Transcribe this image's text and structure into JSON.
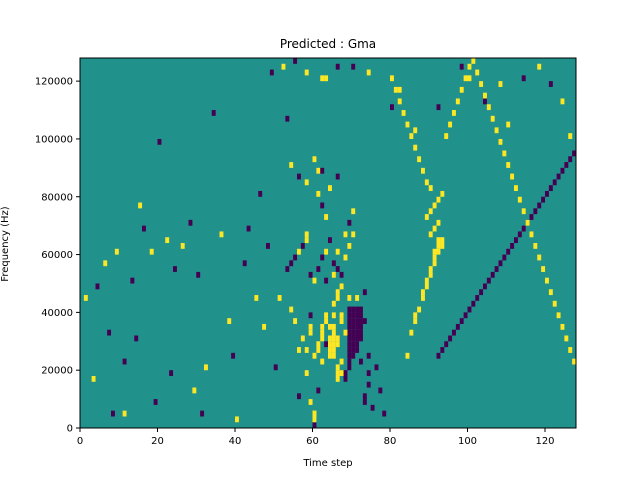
{
  "chart_data": {
    "type": "heatmap",
    "title": "Predicted : Gma",
    "xlabel": "Time step",
    "ylabel": "Frequency (Hz)",
    "xlim": [
      0,
      128
    ],
    "ylim": [
      0,
      128000
    ],
    "x_ticks": [
      0,
      20,
      40,
      60,
      80,
      100,
      120
    ],
    "y_ticks": [
      0,
      20000,
      40000,
      60000,
      80000,
      100000,
      120000
    ],
    "x_tick_labels": [
      "0",
      "20",
      "40",
      "60",
      "80",
      "100",
      "120"
    ],
    "y_tick_labels": [
      "0",
      "20000",
      "40000",
      "60000",
      "80000",
      "100000",
      "120000"
    ],
    "rows": 64,
    "cols": 128,
    "row_height_hz": 2000,
    "background_value": 0,
    "values_legend": {
      "-1": "#440154",
      "0": "#21918c",
      "1": "#fde725"
    },
    "colors": {
      "-1": "#440154",
      "0": "#21918c",
      "1": "#fde725"
    },
    "cells": [
      [
        1,
        22,
        1
      ],
      [
        3,
        8,
        1
      ],
      [
        4,
        24,
        -1
      ],
      [
        6,
        28,
        1
      ],
      [
        7,
        16,
        -1
      ],
      [
        8,
        2,
        -1
      ],
      [
        9,
        30,
        1
      ],
      [
        11,
        2,
        1
      ],
      [
        11,
        11,
        -1
      ],
      [
        13,
        25,
        -1
      ],
      [
        14,
        15,
        -1
      ],
      [
        15,
        38,
        1
      ],
      [
        16,
        34,
        -1
      ],
      [
        18,
        30,
        1
      ],
      [
        19,
        4,
        -1
      ],
      [
        20,
        49,
        -1
      ],
      [
        22,
        32,
        1
      ],
      [
        23,
        9,
        -1
      ],
      [
        24,
        27,
        -1
      ],
      [
        26,
        31,
        1
      ],
      [
        28,
        35,
        -1
      ],
      [
        29,
        6,
        1
      ],
      [
        30,
        26,
        -1
      ],
      [
        31,
        2,
        -1
      ],
      [
        32,
        10,
        1
      ],
      [
        34,
        54,
        -1
      ],
      [
        36,
        33,
        1
      ],
      [
        38,
        18,
        1
      ],
      [
        39,
        12,
        -1
      ],
      [
        40,
        1,
        1
      ],
      [
        42,
        28,
        -1
      ],
      [
        43,
        34,
        -1
      ],
      [
        45,
        22,
        1
      ],
      [
        46,
        40,
        -1
      ],
      [
        47,
        17,
        1
      ],
      [
        48,
        31,
        -1
      ],
      [
        50,
        10,
        -1
      ],
      [
        51,
        22,
        1
      ],
      [
        53,
        53,
        -1
      ],
      [
        54,
        45,
        1
      ],
      [
        56,
        5,
        -1
      ],
      [
        58,
        33,
        1
      ],
      [
        59,
        19,
        -1
      ],
      [
        60,
        2,
        1
      ],
      [
        61,
        44,
        1
      ],
      [
        62,
        60,
        1
      ],
      [
        63,
        25,
        -1
      ],
      [
        49,
        61,
        -1
      ],
      [
        52,
        62,
        1
      ],
      [
        55,
        63,
        -1
      ],
      [
        58,
        61,
        1
      ],
      [
        63,
        60,
        1
      ],
      [
        66,
        62,
        -1
      ],
      [
        70,
        62,
        -1
      ],
      [
        74,
        61,
        1
      ],
      [
        80,
        55,
        -1
      ],
      [
        82,
        58,
        1
      ],
      [
        86,
        51,
        1
      ],
      [
        92,
        55,
        -1
      ],
      [
        98,
        62,
        -1
      ],
      [
        100,
        60,
        1
      ],
      [
        104,
        56,
        -1
      ],
      [
        108,
        59,
        1
      ],
      [
        110,
        52,
        1
      ],
      [
        114,
        60,
        -1
      ],
      [
        118,
        62,
        1
      ],
      [
        121,
        59,
        -1
      ],
      [
        124,
        56,
        1
      ],
      [
        126,
        50,
        1
      ],
      [
        60,
        0,
        -1
      ],
      [
        60,
        1,
        1
      ],
      [
        60,
        2,
        1
      ],
      [
        59,
        4,
        1
      ],
      [
        61,
        6,
        -1
      ],
      [
        58,
        9,
        1
      ],
      [
        62,
        11,
        1
      ],
      [
        63,
        14,
        -1
      ],
      [
        64,
        17,
        1
      ],
      [
        65,
        19,
        1
      ],
      [
        65,
        21,
        1
      ],
      [
        66,
        22,
        1
      ],
      [
        66,
        23,
        1
      ],
      [
        67,
        24,
        1
      ],
      [
        65,
        26,
        1
      ],
      [
        66,
        27,
        -1
      ],
      [
        68,
        29,
        1
      ],
      [
        69,
        31,
        1
      ],
      [
        70,
        33,
        1
      ],
      [
        63,
        36,
        1
      ],
      [
        62,
        38,
        -1
      ],
      [
        61,
        40,
        1
      ],
      [
        68,
        8,
        -1
      ],
      [
        68,
        9,
        -1
      ],
      [
        69,
        10,
        -1
      ],
      [
        69,
        11,
        -1
      ],
      [
        69,
        12,
        -1
      ],
      [
        69,
        13,
        -1
      ],
      [
        69,
        14,
        -1
      ],
      [
        69,
        15,
        -1
      ],
      [
        69,
        16,
        -1
      ],
      [
        69,
        17,
        -1
      ],
      [
        69,
        18,
        -1
      ],
      [
        69,
        19,
        -1
      ],
      [
        69,
        20,
        -1
      ],
      [
        70,
        12,
        -1
      ],
      [
        70,
        13,
        -1
      ],
      [
        70,
        14,
        -1
      ],
      [
        70,
        15,
        -1
      ],
      [
        70,
        16,
        -1
      ],
      [
        70,
        17,
        -1
      ],
      [
        70,
        18,
        -1
      ],
      [
        70,
        19,
        -1
      ],
      [
        70,
        20,
        -1
      ],
      [
        71,
        13,
        -1
      ],
      [
        71,
        14,
        -1
      ],
      [
        71,
        15,
        -1
      ],
      [
        71,
        16,
        -1
      ],
      [
        71,
        17,
        -1
      ],
      [
        71,
        18,
        -1
      ],
      [
        71,
        19,
        -1
      ],
      [
        71,
        20,
        -1
      ],
      [
        72,
        15,
        -1
      ],
      [
        72,
        16,
        -1
      ],
      [
        72,
        17,
        -1
      ],
      [
        72,
        18,
        -1
      ],
      [
        72,
        19,
        -1
      ],
      [
        72,
        20,
        -1
      ],
      [
        73,
        4,
        -1
      ],
      [
        73,
        5,
        -1
      ],
      [
        73,
        18,
        -1
      ],
      [
        74,
        7,
        -1
      ],
      [
        74,
        9,
        -1
      ],
      [
        75,
        3,
        -1
      ],
      [
        76,
        10,
        -1
      ],
      [
        77,
        6,
        -1
      ],
      [
        78,
        2,
        -1
      ],
      [
        67,
        18,
        1
      ],
      [
        67,
        19,
        1
      ],
      [
        66,
        14,
        1
      ],
      [
        66,
        15,
        1
      ],
      [
        67,
        11,
        1
      ],
      [
        68,
        16,
        1
      ],
      [
        69,
        22,
        1
      ],
      [
        71,
        22,
        1
      ],
      [
        72,
        11,
        -1
      ],
      [
        73,
        23,
        -1
      ],
      [
        74,
        12,
        -1
      ],
      [
        60,
        12,
        1
      ],
      [
        61,
        13,
        1
      ],
      [
        61,
        14,
        1
      ],
      [
        62,
        15,
        1
      ],
      [
        62,
        16,
        1
      ],
      [
        62,
        17,
        1
      ],
      [
        63,
        18,
        1
      ],
      [
        63,
        19,
        1
      ],
      [
        64,
        12,
        1
      ],
      [
        64,
        13,
        1
      ],
      [
        64,
        14,
        1
      ],
      [
        64,
        15,
        1
      ],
      [
        65,
        12,
        1
      ],
      [
        65,
        13,
        1
      ],
      [
        65,
        14,
        1
      ],
      [
        65,
        15,
        1
      ],
      [
        65,
        16,
        1
      ],
      [
        65,
        17,
        1
      ],
      [
        66,
        8,
        1
      ],
      [
        66,
        9,
        1
      ],
      [
        66,
        10,
        1
      ],
      [
        67,
        9,
        1
      ],
      [
        59,
        16,
        1
      ],
      [
        59,
        17,
        1
      ],
      [
        58,
        13,
        1
      ],
      [
        57,
        15,
        1
      ],
      [
        56,
        13,
        1
      ],
      [
        55,
        18,
        1
      ],
      [
        54,
        20,
        1
      ],
      [
        53,
        27,
        -1
      ],
      [
        54,
        28,
        -1
      ],
      [
        55,
        29,
        -1
      ],
      [
        56,
        30,
        1
      ],
      [
        57,
        31,
        -1
      ],
      [
        58,
        32,
        1
      ],
      [
        59,
        26,
        -1
      ],
      [
        60,
        25,
        1
      ],
      [
        61,
        27,
        -1
      ],
      [
        62,
        29,
        -1
      ],
      [
        63,
        30,
        1
      ],
      [
        64,
        32,
        -1
      ],
      [
        65,
        28,
        -1
      ],
      [
        66,
        30,
        1
      ],
      [
        67,
        26,
        -1
      ],
      [
        68,
        33,
        1
      ],
      [
        69,
        35,
        -1
      ],
      [
        70,
        37,
        1
      ],
      [
        56,
        43,
        -1
      ],
      [
        58,
        42,
        1
      ],
      [
        60,
        46,
        1
      ],
      [
        62,
        44,
        -1
      ],
      [
        64,
        41,
        1
      ],
      [
        66,
        43,
        -1
      ],
      [
        84,
        12,
        1
      ],
      [
        85,
        16,
        1
      ],
      [
        86,
        18,
        1
      ],
      [
        86,
        19,
        1
      ],
      [
        87,
        20,
        1
      ],
      [
        88,
        22,
        1
      ],
      [
        88,
        23,
        1
      ],
      [
        89,
        24,
        1
      ],
      [
        89,
        25,
        1
      ],
      [
        90,
        26,
        1
      ],
      [
        90,
        27,
        1
      ],
      [
        91,
        28,
        1
      ],
      [
        91,
        29,
        1
      ],
      [
        91,
        30,
        1
      ],
      [
        92,
        30,
        1
      ],
      [
        92,
        31,
        1
      ],
      [
        92,
        32,
        1
      ],
      [
        93,
        31,
        1
      ],
      [
        93,
        32,
        1
      ],
      [
        90,
        33,
        1
      ],
      [
        91,
        34,
        1
      ],
      [
        92,
        35,
        1
      ],
      [
        89,
        36,
        1
      ],
      [
        90,
        37,
        1
      ],
      [
        91,
        38,
        1
      ],
      [
        92,
        39,
        1
      ],
      [
        93,
        40,
        1
      ],
      [
        90,
        41,
        1
      ],
      [
        89,
        42,
        1
      ],
      [
        88,
        44,
        1
      ],
      [
        87,
        46,
        1
      ],
      [
        86,
        48,
        1
      ],
      [
        85,
        50,
        1
      ],
      [
        84,
        52,
        1
      ],
      [
        83,
        54,
        1
      ],
      [
        82,
        56,
        1
      ],
      [
        81,
        58,
        1
      ],
      [
        80,
        60,
        1
      ],
      [
        92,
        12,
        -1
      ],
      [
        93,
        13,
        -1
      ],
      [
        94,
        14,
        -1
      ],
      [
        95,
        15,
        -1
      ],
      [
        96,
        16,
        -1
      ],
      [
        97,
        17,
        -1
      ],
      [
        98,
        18,
        -1
      ],
      [
        99,
        19,
        -1
      ],
      [
        100,
        20,
        -1
      ],
      [
        101,
        21,
        -1
      ],
      [
        102,
        22,
        -1
      ],
      [
        103,
        23,
        -1
      ],
      [
        104,
        24,
        -1
      ],
      [
        105,
        25,
        -1
      ],
      [
        106,
        26,
        -1
      ],
      [
        107,
        27,
        -1
      ],
      [
        108,
        28,
        -1
      ],
      [
        109,
        29,
        -1
      ],
      [
        110,
        30,
        -1
      ],
      [
        111,
        31,
        -1
      ],
      [
        112,
        32,
        -1
      ],
      [
        113,
        33,
        -1
      ],
      [
        114,
        34,
        -1
      ],
      [
        115,
        35,
        -1
      ],
      [
        116,
        36,
        -1
      ],
      [
        117,
        37,
        -1
      ],
      [
        118,
        38,
        -1
      ],
      [
        119,
        39,
        -1
      ],
      [
        120,
        40,
        -1
      ],
      [
        121,
        41,
        -1
      ],
      [
        122,
        42,
        -1
      ],
      [
        123,
        43,
        -1
      ],
      [
        124,
        44,
        -1
      ],
      [
        125,
        45,
        -1
      ],
      [
        126,
        46,
        -1
      ],
      [
        127,
        47,
        -1
      ],
      [
        94,
        50,
        1
      ],
      [
        95,
        52,
        1
      ],
      [
        96,
        54,
        1
      ],
      [
        97,
        56,
        1
      ],
      [
        98,
        58,
        1
      ],
      [
        99,
        60,
        1
      ],
      [
        100,
        62,
        1
      ],
      [
        101,
        63,
        1
      ],
      [
        102,
        61,
        1
      ],
      [
        103,
        59,
        1
      ],
      [
        104,
        57,
        1
      ],
      [
        105,
        55,
        1
      ],
      [
        106,
        53,
        1
      ],
      [
        107,
        51,
        1
      ],
      [
        108,
        49,
        1
      ],
      [
        109,
        47,
        1
      ],
      [
        110,
        45,
        1
      ],
      [
        111,
        43,
        1
      ],
      [
        112,
        41,
        1
      ],
      [
        113,
        39,
        1
      ],
      [
        114,
        37,
        1
      ],
      [
        115,
        35,
        1
      ],
      [
        116,
        33,
        1
      ],
      [
        117,
        31,
        1
      ],
      [
        118,
        29,
        1
      ],
      [
        119,
        27,
        1
      ],
      [
        120,
        25,
        1
      ],
      [
        121,
        23,
        1
      ],
      [
        122,
        21,
        1
      ],
      [
        123,
        19,
        1
      ],
      [
        124,
        17,
        1
      ],
      [
        125,
        15,
        1
      ],
      [
        126,
        13,
        1
      ],
      [
        127,
        11,
        1
      ]
    ]
  }
}
